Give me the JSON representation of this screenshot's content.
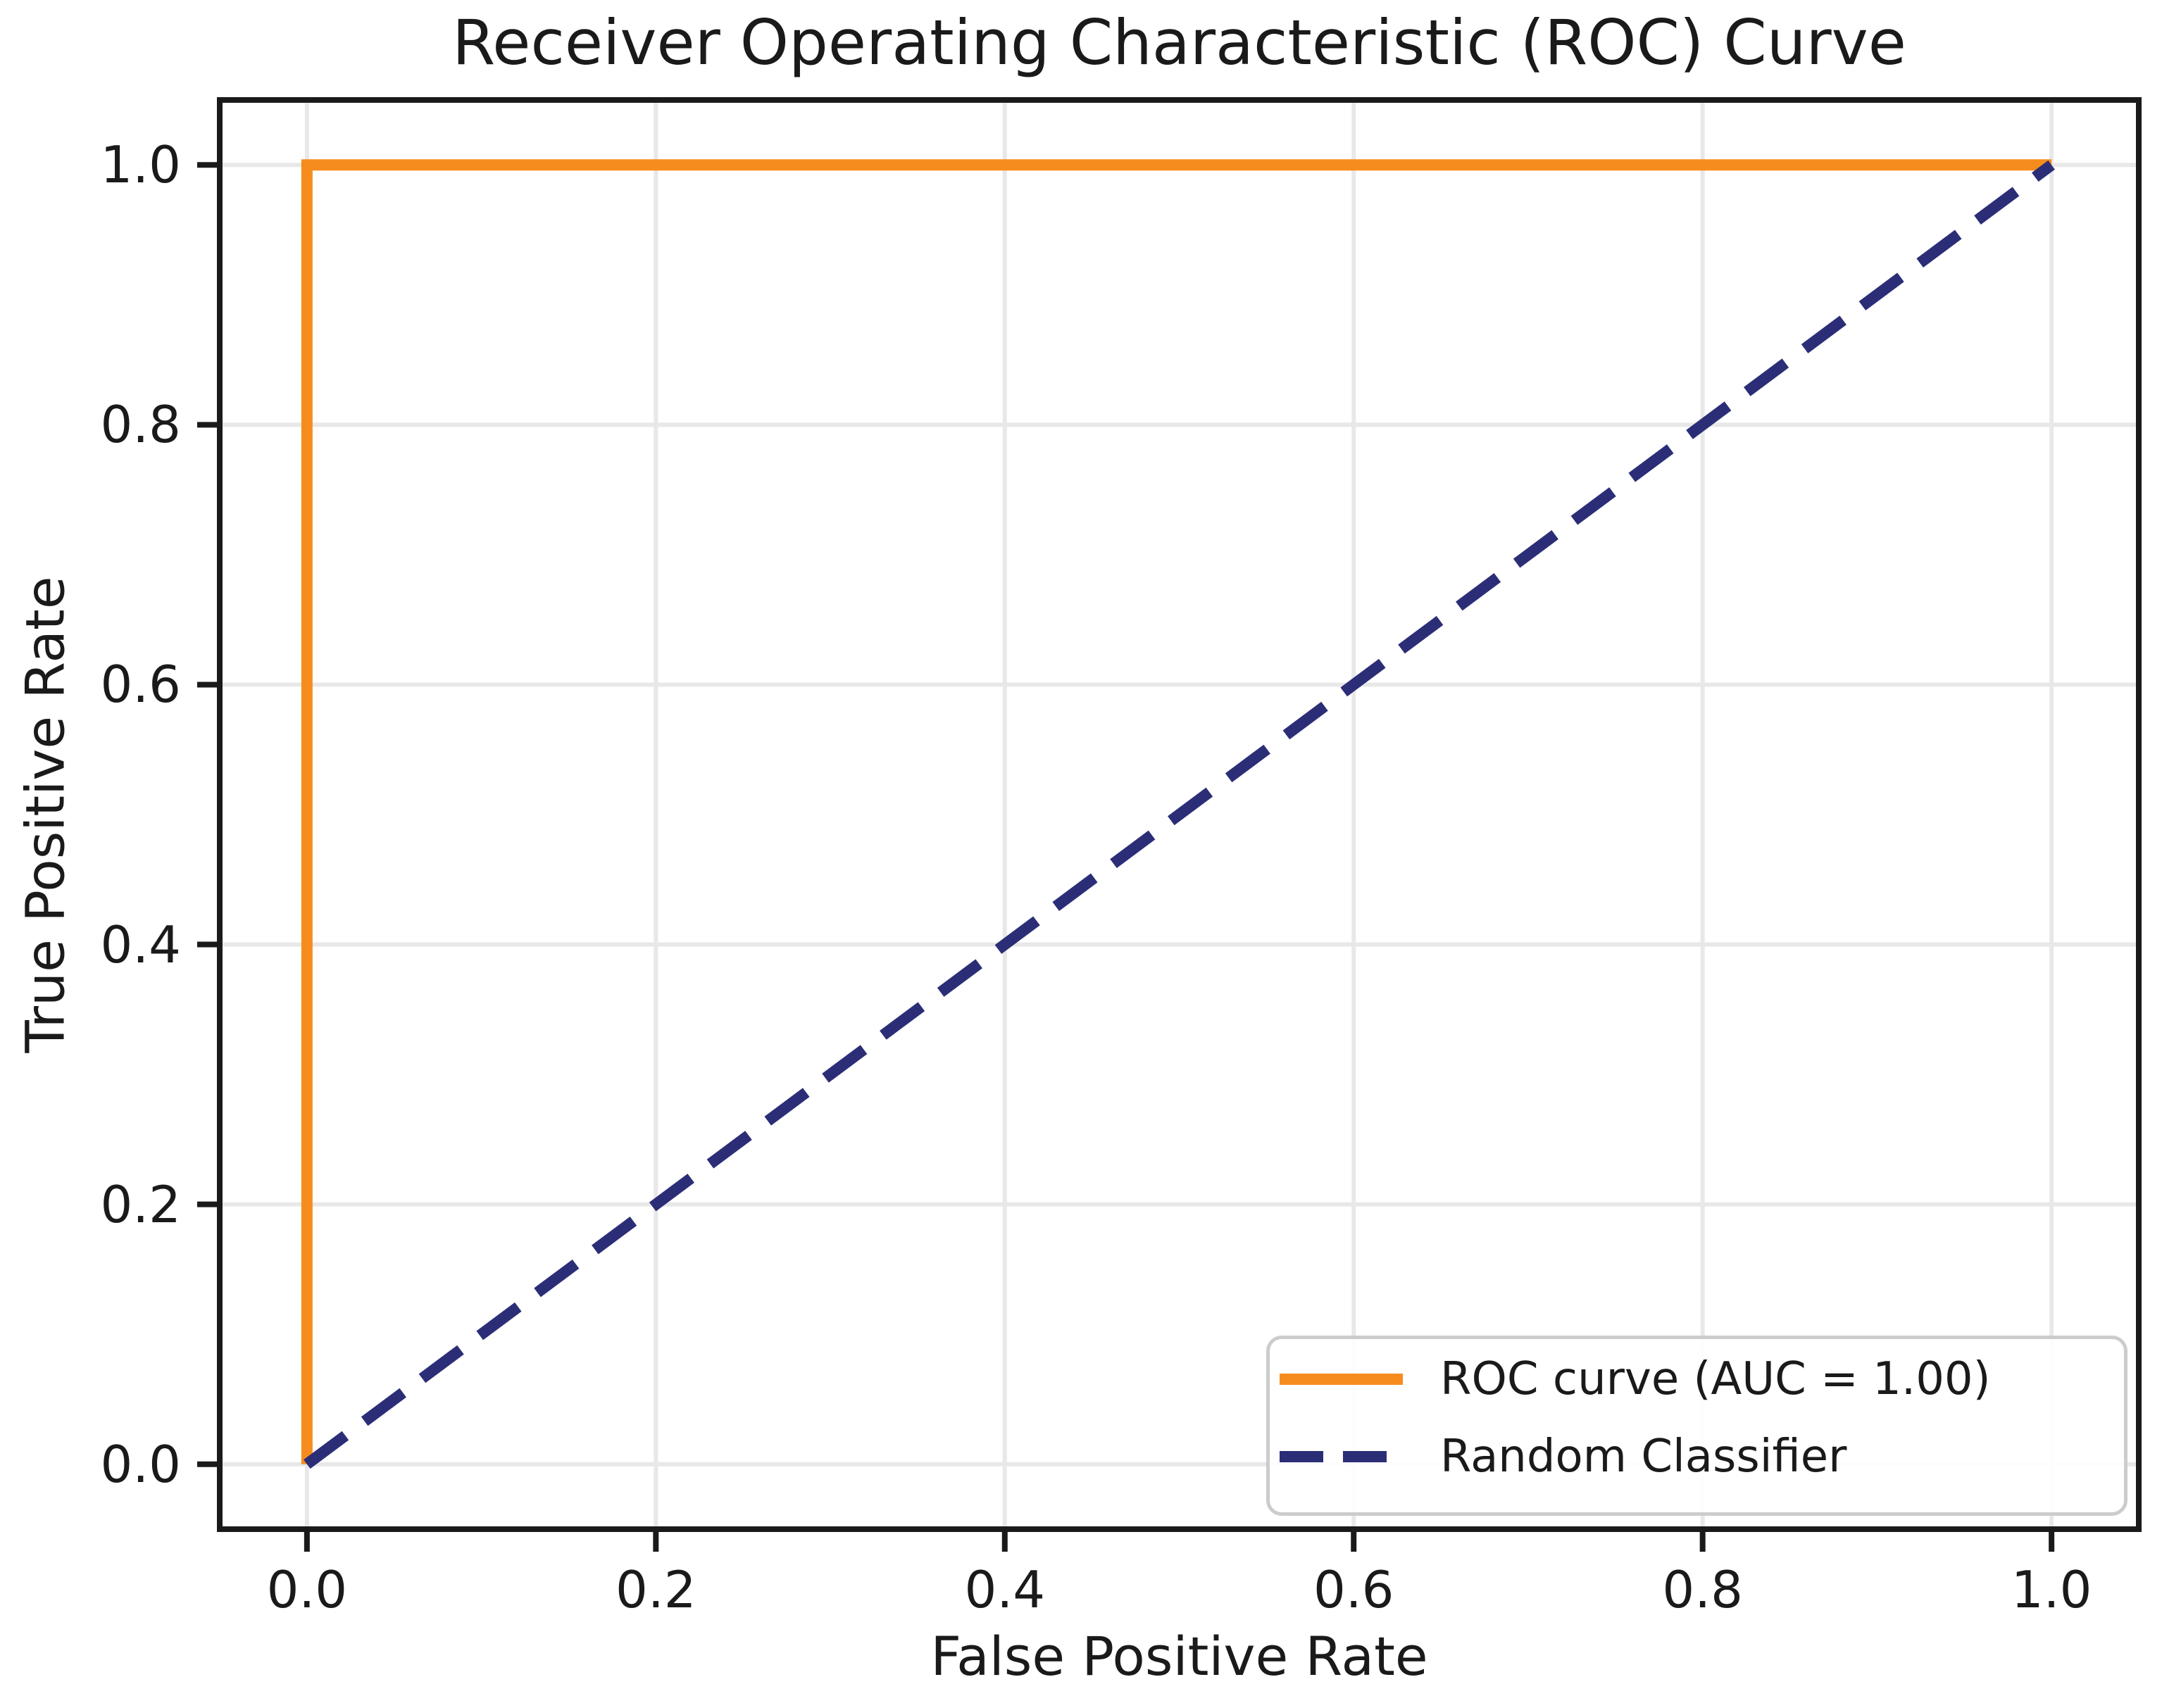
{
  "chart_data": {
    "type": "line",
    "title": "Receiver Operating Characteristic (ROC) Curve",
    "xlabel": "False Positive Rate",
    "ylabel": "True Positive Rate",
    "xlim": [
      0.0,
      1.0
    ],
    "ylim": [
      0.0,
      1.0
    ],
    "x_ticks": [
      "0.0",
      "0.2",
      "0.4",
      "0.6",
      "0.8",
      "1.0"
    ],
    "y_ticks": [
      "0.0",
      "0.2",
      "0.4",
      "0.6",
      "0.8",
      "1.0"
    ],
    "grid": true,
    "legend_position": "lower right",
    "auc": "1.00",
    "series": [
      {
        "name": "ROC curve (AUC = 1.00)",
        "color": "#F68C1E",
        "style": "solid",
        "x": [
          0.0,
          0.0,
          1.0
        ],
        "y": [
          0.0,
          1.0,
          1.0
        ]
      },
      {
        "name": "Random Classifier",
        "color": "#2B2E76",
        "style": "dashed",
        "x": [
          0.0,
          1.0
        ],
        "y": [
          0.0,
          1.0
        ]
      }
    ]
  },
  "styles": {
    "grid_color": "#e8e8e8",
    "axis_color": "#1a1a1a",
    "text_color": "#1a1a1a",
    "legend_border_color": "#cccccc",
    "background": "#ffffff"
  }
}
